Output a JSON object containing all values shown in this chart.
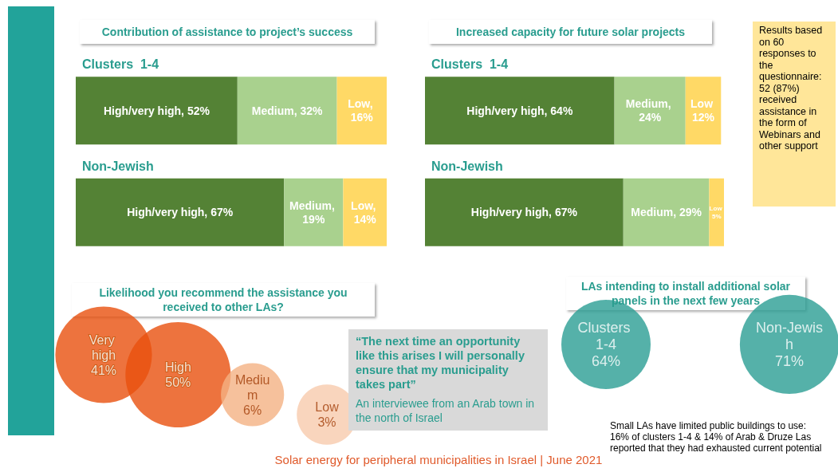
{
  "chart_data": [
    {
      "type": "bar",
      "title": "Contribution  of assistance to project’s success",
      "orientation": "horizontal",
      "stacked": true,
      "categories": [
        "Clusters  1-4",
        "Non-Jewish"
      ],
      "tick_labels": false,
      "series": [
        {
          "color": "#548235",
          "values": [
            52,
            67
          ],
          "value_labels": [
            "High/very high, 52%",
            "High/very high, 67%"
          ]
        },
        {
          "color": "#a9d18e",
          "values": [
            32,
            19
          ],
          "value_labels": [
            "Medium, 32%",
            "Medium, 19%"
          ]
        },
        {
          "color": "#ffd966",
          "values": [
            16,
            14
          ],
          "value_labels": [
            "Low, 16%",
            "Low, 14%"
          ]
        }
      ]
    },
    {
      "type": "bar",
      "title": "Increased capacity for future solar projects",
      "orientation": "horizontal",
      "stacked": true,
      "categories": [
        "Clusters  1-4",
        "Non-Jewish"
      ],
      "tick_labels": false,
      "series": [
        {
          "color": "#548235",
          "values": [
            64,
            67
          ],
          "value_labels": [
            "High/very high, 64%",
            "High/very high, 67%"
          ]
        },
        {
          "color": "#a9d18e",
          "values": [
            24,
            29
          ],
          "value_labels": [
            "Medium, 24%",
            "Medium, 29%"
          ]
        },
        {
          "color": "#ffd966",
          "values": [
            12,
            5
          ],
          "value_labels": [
            "Low 12%",
            "Low 5%"
          ]
        }
      ]
    },
    {
      "type": "other",
      "title": "Likelihood you recommend the assistance you received to other LAs?",
      "categories": [
        "Very high",
        "High",
        "Medium",
        "Low"
      ],
      "values": [
        41,
        50,
        6,
        3
      ],
      "value_labels": [
        "41%",
        "50%",
        "6%",
        "3%"
      ],
      "colors": [
        "#e8500e",
        "#e8500e",
        "#f4b183",
        "#f8cbad"
      ]
    },
    {
      "type": "other",
      "title": "LAs intending to install additional solar panels in the next few years",
      "categories": [
        "Clusters 1-4",
        "Non-Jewish"
      ],
      "values": [
        64,
        71
      ],
      "value_labels": [
        "64%",
        "71%"
      ],
      "colors": [
        "#2a9d94",
        "#2a9d94"
      ],
      "annotations": [
        "Small LAs have limited public buildings to use: 16% of clusters 1-4 & 14% of Arab & Druze Las reported that they had exhausted current potential"
      ]
    },
    {
      "type": "other",
      "annotations": [
        "Results based on 60 responses to the questionnaire: 52 (87%) received assistance in the form of Webinars and other support"
      ]
    },
    {
      "type": "other",
      "annotations": [
        "“The next time an opportunity like this arises I will personally ensure that my municipality takes part”",
        "An interviewee from an Arab town in the north of Israel"
      ]
    },
    {
      "type": "other",
      "annotations": [
        "Solar energy for peripheral municipalities in Israel | June 2021"
      ]
    }
  ]
}
